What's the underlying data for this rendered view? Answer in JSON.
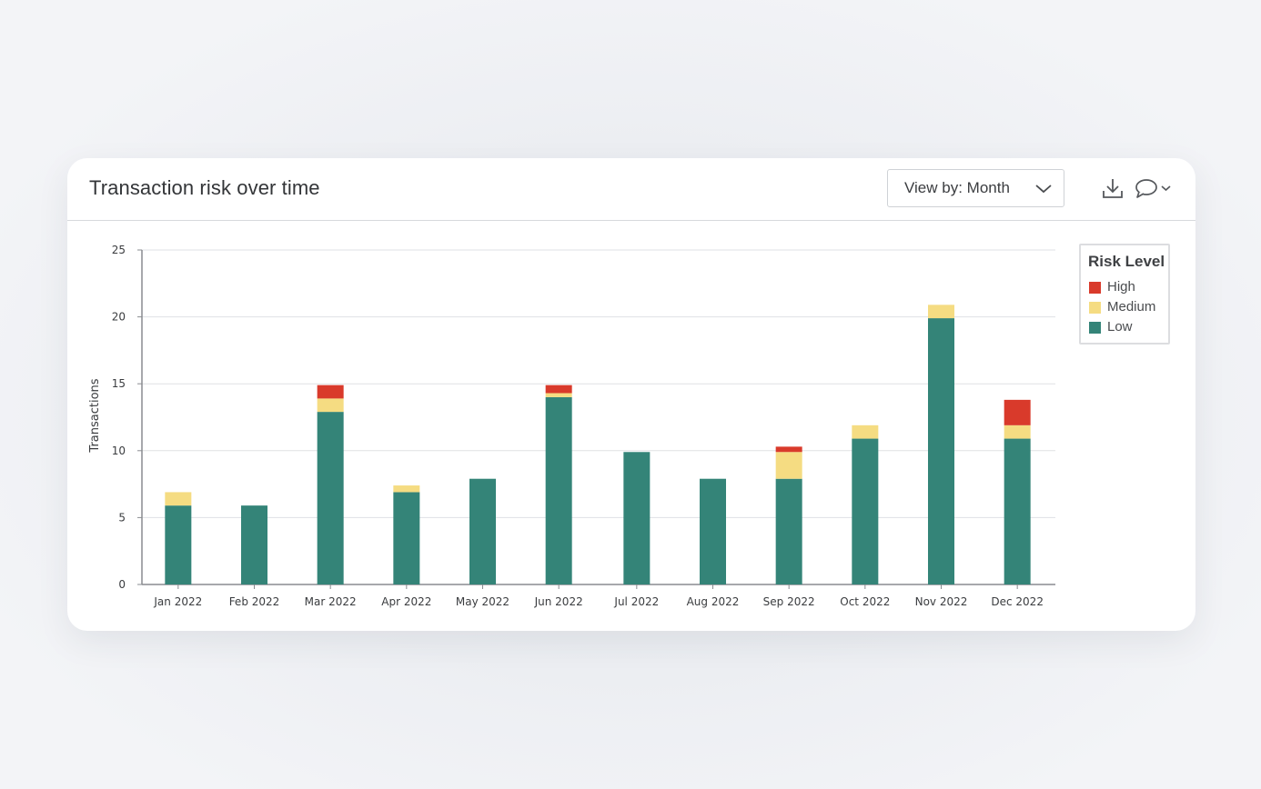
{
  "header": {
    "title": "Transaction risk over time",
    "view_select_label": "View by: Month",
    "download_icon": "download-icon",
    "comment_icon": "comment-icon",
    "comment_chevron_icon": "chevron-down-icon",
    "select_chevron_icon": "chevron-down-icon"
  },
  "legend": {
    "title": "Risk Level",
    "items": [
      {
        "label": "High",
        "color": "#d93a2b"
      },
      {
        "label": "Medium",
        "color": "#f5dc82"
      },
      {
        "label": "Low",
        "color": "#348478"
      }
    ]
  },
  "chart_data": {
    "type": "bar",
    "stacked": true,
    "title": "Transaction risk over time",
    "xlabel": "",
    "ylabel": "Transactions",
    "ylim": [
      0,
      25
    ],
    "yticks": [
      0,
      5,
      10,
      15,
      20,
      25
    ],
    "grid": true,
    "legend_position": "top-right",
    "categories": [
      "Jan 2022",
      "Feb 2022",
      "Mar 2022",
      "Apr 2022",
      "May 2022",
      "Jun 2022",
      "Jul 2022",
      "Aug 2022",
      "Sep 2022",
      "Oct 2022",
      "Nov 2022",
      "Dec 2022"
    ],
    "series": [
      {
        "name": "Low",
        "color": "#348478",
        "values": [
          5.9,
          5.9,
          12.9,
          6.9,
          7.9,
          14.0,
          9.9,
          7.9,
          7.9,
          10.9,
          19.9,
          10.9
        ]
      },
      {
        "name": "Medium",
        "color": "#f5dc82",
        "values": [
          1.0,
          0,
          1.0,
          0.5,
          0,
          0.3,
          0,
          0,
          2.0,
          1.0,
          1.0,
          1.0
        ]
      },
      {
        "name": "High",
        "color": "#d93a2b",
        "values": [
          0,
          0,
          1.0,
          0,
          0,
          0.6,
          0,
          0,
          0.4,
          0,
          0,
          1.9
        ]
      }
    ]
  }
}
